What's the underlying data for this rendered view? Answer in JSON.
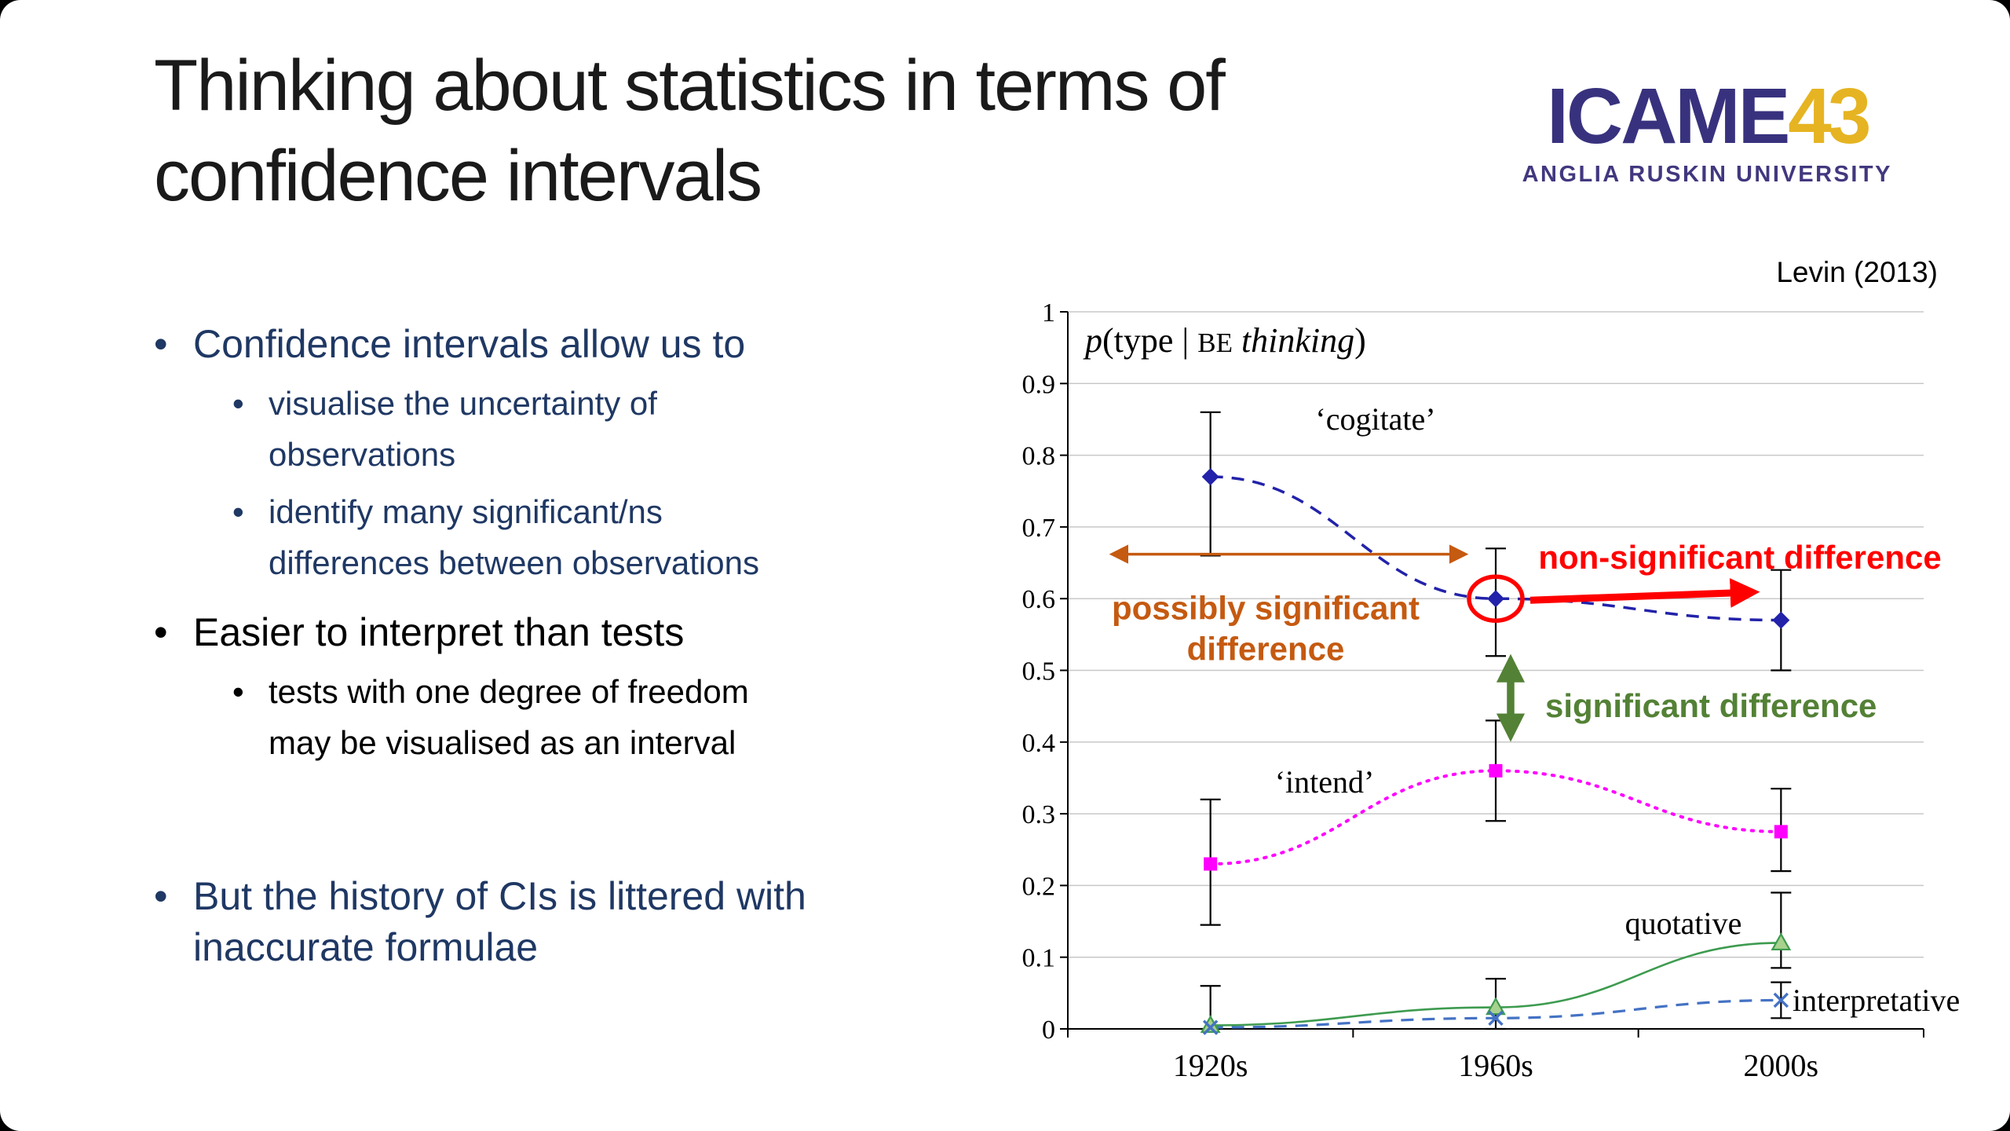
{
  "slide": {
    "title_lines": [
      "Thinking about statistics in terms of",
      "confidence intervals"
    ],
    "citation": "Levin (2013)",
    "logo": {
      "main": "ICAME",
      "number": "43",
      "subtitle": "ANGLIA RUSKIN UNIVERSITY",
      "main_color": "#38327E",
      "number_color": "#E6B422"
    },
    "bullet_color_navy": "#1F3864",
    "bullets": [
      {
        "level": 1,
        "color": "navy",
        "text": "Confidence intervals allow us to"
      },
      {
        "level": 2,
        "color": "navy",
        "text": "visualise the uncertainty of observations"
      },
      {
        "level": 2,
        "color": "navy",
        "text": "identify many significant/ns differences between observations"
      },
      {
        "level": 1,
        "color": "black",
        "text": "Easier to interpret than tests"
      },
      {
        "level": 2,
        "color": "black",
        "text": "tests with one degree of freedom may be visualised as an interval"
      },
      {
        "level": 1,
        "color": "navy",
        "text": "But the history of CIs is littered with inaccurate formulae",
        "gap_before": true
      }
    ]
  },
  "chart_data": {
    "type": "line",
    "title": "p(type | BE thinking)",
    "title_parts": [
      {
        "t": "p",
        "s": "i"
      },
      {
        "t": "(type | ",
        "s": "n"
      },
      {
        "t": "BE",
        "s": "sc"
      },
      {
        "t": " thinking",
        "s": "i"
      },
      {
        "t": ")",
        "s": "n"
      }
    ],
    "categories": [
      "1920s",
      "1960s",
      "2000s"
    ],
    "ylim": [
      0,
      1
    ],
    "ytick_step": 0.1,
    "grid": true,
    "series": [
      {
        "name": "cogitate",
        "label": "‘cogitate’",
        "values": [
          0.77,
          0.6,
          0.57
        ],
        "err_low": [
          0.66,
          0.52,
          0.5
        ],
        "err_high": [
          0.86,
          0.67,
          0.64
        ],
        "color": "#2222AA",
        "dash": "dashed",
        "marker": "diamond"
      },
      {
        "name": "intend",
        "label": "‘intend’",
        "values": [
          0.23,
          0.36,
          0.275
        ],
        "err_low": [
          0.145,
          0.29,
          0.22
        ],
        "err_high": [
          0.32,
          0.43,
          0.335
        ],
        "color": "#FF00FF",
        "dash": "dotted",
        "marker": "square"
      },
      {
        "name": "quotative",
        "label": "quotative",
        "values": [
          0.005,
          0.03,
          0.12
        ],
        "err_low": [
          0.0,
          0.0,
          0.085
        ],
        "err_high": [
          0.06,
          0.07,
          0.19
        ],
        "color": "#3D9B4F",
        "dash": "solid",
        "marker": "triangle"
      },
      {
        "name": "interpretative",
        "label": "interpretative",
        "values": [
          0.002,
          0.015,
          0.04
        ],
        "err_low": [
          0.0,
          0.0,
          0.015
        ],
        "err_high": [
          0.0,
          0.0,
          0.065
        ],
        "color": "#4472C4",
        "dash": "dashed",
        "marker": "x"
      }
    ],
    "annotations": {
      "possibly": {
        "text_line1": "possibly significant",
        "text_line2": "difference",
        "color": "#C55A11"
      },
      "nonsig": {
        "text": "non-significant difference",
        "color": "#FF0000"
      },
      "sig": {
        "text": "significant difference",
        "color": "#538135"
      }
    }
  }
}
